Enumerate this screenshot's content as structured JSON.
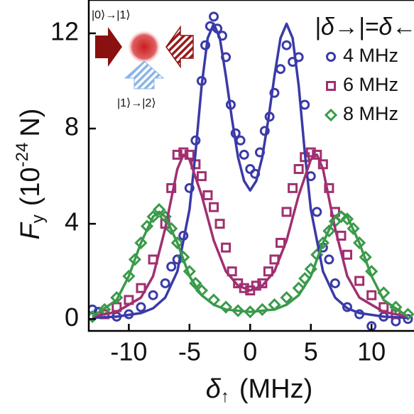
{
  "chart_data": {
    "type": "scatter",
    "legend_title": "|δ→|=δ←",
    "annotations": [
      "|0⟩→|1⟩",
      "|1⟩→|2⟩"
    ],
    "x_label": [
      "δ",
      "↑",
      "(MHz)"
    ],
    "y_label": [
      "F",
      "y",
      "(10",
      "-24",
      "N)"
    ],
    "xlim": [
      -13.3,
      13.5
    ],
    "ylim": [
      -0.5,
      13.4
    ],
    "xticks": [
      -10,
      -5,
      0,
      5,
      10
    ],
    "yticks": [
      0,
      4,
      8,
      12
    ],
    "series": [
      {
        "name": "4 MHz",
        "color": "#3a3aa8",
        "marker": "circle",
        "x": [
          -13,
          -12.5,
          -11,
          -10,
          -9,
          -8,
          -7,
          -6.5,
          -6,
          -5.5,
          -5,
          -4.5,
          -4,
          -3.7,
          -3.3,
          -3,
          -2.7,
          -2.3,
          -2,
          -1.6,
          -1.2,
          -0.8,
          -0.5,
          0,
          0.4,
          0.8,
          1.2,
          1.6,
          2,
          2.5,
          3,
          3.5,
          4,
          4.5,
          5,
          5.5,
          6,
          6.5,
          7,
          8,
          9,
          10,
          11,
          12,
          13
        ],
        "values": [
          0.4,
          0.3,
          0.1,
          0.2,
          0.5,
          1.0,
          1.5,
          2.2,
          2.5,
          3.5,
          5.5,
          7.5,
          10,
          11.5,
          12.3,
          12.7,
          12.2,
          11.9,
          11,
          9,
          7.8,
          7.5,
          6.9,
          6.3,
          6.1,
          7,
          7.9,
          8.5,
          9.5,
          10.5,
          11.5,
          10.8,
          11,
          9,
          6,
          4.5,
          3,
          2.5,
          1.5,
          0.5,
          0.2,
          -0.3,
          0.1,
          -0.1,
          0.0
        ]
      },
      {
        "name": "6 MHz",
        "color": "#a03070",
        "marker": "square",
        "x": [
          -12,
          -11,
          -10,
          -9,
          -8,
          -7,
          -6.5,
          -6,
          -5.5,
          -5,
          -4.5,
          -4,
          -3.5,
          -3,
          -2.5,
          -2,
          -1.5,
          -1,
          -0.5,
          0,
          0.5,
          1,
          1.5,
          2,
          2.5,
          3,
          3.5,
          4,
          4.5,
          5,
          5.5,
          6,
          6.5,
          7,
          7.5,
          8,
          9,
          10,
          11,
          12
        ],
        "values": [
          0.2,
          0.5,
          0.8,
          1.3,
          2.5,
          4,
          5.5,
          6.9,
          7,
          6.9,
          6.5,
          6,
          5.2,
          4.7,
          4,
          3,
          2,
          1.5,
          1.3,
          1.2,
          1.4,
          1.5,
          2,
          2.5,
          3.2,
          4.5,
          5.5,
          6.3,
          6.8,
          7,
          6.9,
          6.5,
          5.5,
          4.5,
          3.5,
          2.7,
          1.6,
          1,
          0.5,
          0.2
        ]
      },
      {
        "name": "8 MHz",
        "color": "#3a9a4a",
        "marker": "diamond",
        "x": [
          -13,
          -12,
          -11,
          -10,
          -9.5,
          -9,
          -8.5,
          -8,
          -7.5,
          -7,
          -6.5,
          -6,
          -5.5,
          -5,
          -4.5,
          -4,
          -3,
          -2,
          -1,
          0,
          1,
          2,
          3,
          4,
          4.5,
          5,
          5.5,
          6,
          6.5,
          7,
          7.5,
          8,
          8.5,
          9,
          9.5,
          10,
          11,
          12,
          13
        ],
        "values": [
          0.1,
          0.4,
          0.9,
          1.8,
          2.5,
          3.2,
          3.9,
          4.3,
          4.6,
          4.3,
          3.8,
          3.2,
          2.6,
          2,
          1.5,
          1.2,
          0.8,
          0.5,
          0.35,
          0.3,
          0.4,
          0.6,
          0.9,
          1.3,
          1.7,
          2.1,
          2.7,
          3.2,
          3.7,
          4.1,
          4.3,
          4.2,
          3.8,
          3.2,
          2.6,
          2,
          1.1,
          0.5,
          0.2
        ]
      }
    ],
    "fits": [
      {
        "color": "#3a3aa8",
        "x": [
          -13,
          -11,
          -9,
          -8,
          -7,
          -6,
          -5,
          -4.5,
          -4,
          -3.5,
          -3,
          -2.5,
          -2,
          -1.5,
          -1,
          -0.5,
          0,
          0.5,
          1,
          1.5,
          2,
          2.5,
          3,
          3.5,
          4,
          4.5,
          5,
          6,
          7,
          8,
          9,
          11,
          13
        ],
        "values": [
          0.05,
          0.1,
          0.25,
          0.45,
          0.9,
          2,
          4.6,
          7,
          9.8,
          11.8,
          12.4,
          11.8,
          10.2,
          8.4,
          6.8,
          5.8,
          5.4,
          5.8,
          6.8,
          8.4,
          10.2,
          11.8,
          12.4,
          11.8,
          9.8,
          7,
          4.6,
          2,
          0.9,
          0.45,
          0.25,
          0.1,
          0.05
        ]
      },
      {
        "color": "#a03070",
        "x": [
          -13,
          -11,
          -9,
          -8,
          -7,
          -6,
          -5.5,
          -5,
          -4,
          -3,
          -2,
          -1,
          0,
          1,
          2,
          3,
          4,
          5,
          5.5,
          6,
          7,
          8,
          9,
          11,
          13
        ],
        "values": [
          0.1,
          0.3,
          0.9,
          1.8,
          3.8,
          6.3,
          6.9,
          6.7,
          5.2,
          3.3,
          2,
          1.4,
          1.2,
          1.4,
          2,
          3.3,
          5.2,
          6.7,
          6.9,
          6.3,
          3.8,
          1.8,
          0.9,
          0.3,
          0.1
        ]
      },
      {
        "color": "#3a9a4a",
        "x": [
          -13,
          -11,
          -10,
          -9,
          -8,
          -7.5,
          -7,
          -6,
          -5,
          -4,
          -3,
          -2,
          0,
          2,
          3,
          4,
          5,
          6,
          7,
          7.5,
          8,
          9,
          10,
          11,
          13
        ],
        "values": [
          0.1,
          0.8,
          1.8,
          3.2,
          4.3,
          4.5,
          4.3,
          3.2,
          1.8,
          1,
          0.6,
          0.4,
          0.3,
          0.4,
          0.6,
          1,
          1.8,
          3.2,
          4.3,
          4.5,
          4.3,
          3.2,
          1.8,
          0.8,
          0.1
        ]
      }
    ]
  }
}
